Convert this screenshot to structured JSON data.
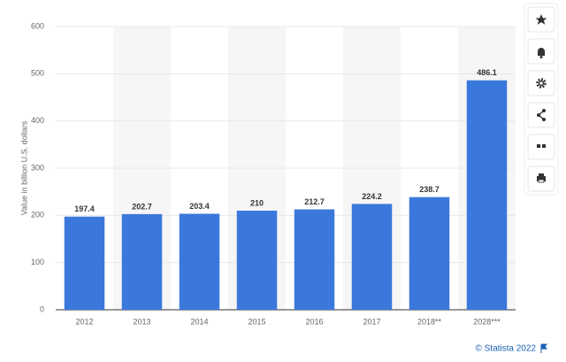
{
  "chart_data": {
    "type": "bar",
    "y_label": "Value in billion U.S. dollars",
    "categories": [
      "2012",
      "2013",
      "2014",
      "2015",
      "2016",
      "2017",
      "2018**",
      "2028***"
    ],
    "values": [
      197.4,
      202.7,
      203.4,
      210,
      212.7,
      224.2,
      238.7,
      486.1
    ],
    "color": "#3b78dc",
    "ylim": [
      0,
      600
    ],
    "yticks": [
      0,
      100,
      200,
      300,
      400,
      500,
      600
    ],
    "grid": true,
    "source": "© Statista 2022"
  }
}
